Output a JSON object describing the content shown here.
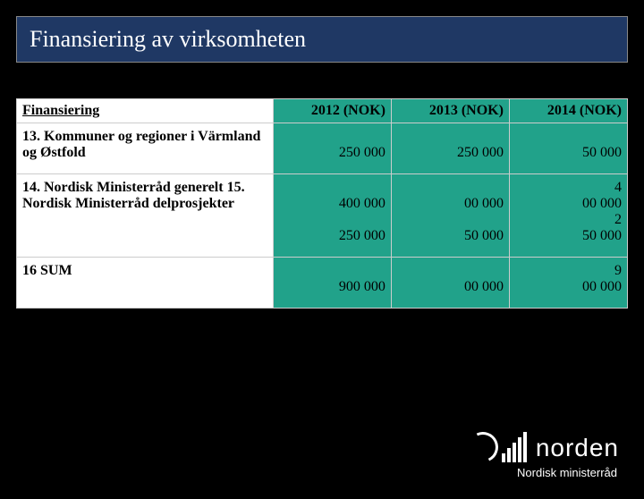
{
  "title": "Finansiering av virksomheten",
  "columns": [
    "Finansiering",
    "2012 (NOK)",
    "2013 (NOK)",
    "2014 (NOK)"
  ],
  "rows": [
    {
      "label": "13.   Kommuner og regioner i Värmland og Østfold",
      "v2012": "250 000",
      "v2013": "250 000",
      "v2014": "50 000"
    },
    {
      "label": "14.   Nordisk Ministerråd generelt\n15.   Nordisk Ministerråd delprosjekter",
      "v2012": "400 000\n\n250 000",
      "v2013": "00 000\n\n50 000",
      "v2014": "4\n00 000\n2\n50 000"
    },
    {
      "label": "16    SUM",
      "v2012": "900 000",
      "v2013": "00 000",
      "v2014": "9\n00 000"
    }
  ],
  "logo": {
    "main": "norden",
    "sub": "Nordisk ministerråd"
  },
  "colors": {
    "page_bg": "#000000",
    "title_bg": "#1f3864",
    "accent": "#21a28a",
    "cell_bg": "#ffffff",
    "border": "#cccccc"
  }
}
